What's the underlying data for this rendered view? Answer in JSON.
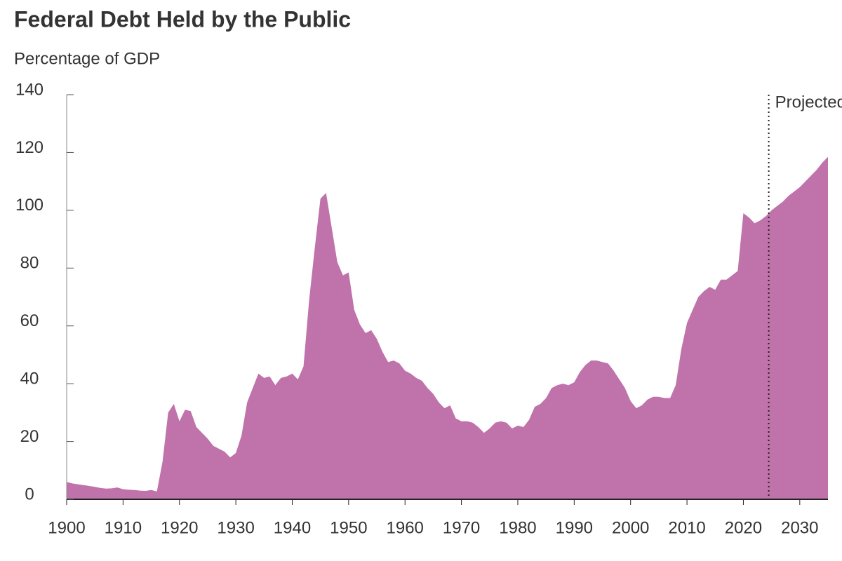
{
  "chart_data": {
    "type": "area",
    "title": "Federal Debt Held by the Public",
    "subtitle": "Percentage of GDP",
    "annotation": {
      "label": "Projected",
      "x": 2024.5
    },
    "color": "#c072aa",
    "x": [
      1900,
      1901,
      1902,
      1903,
      1904,
      1905,
      1906,
      1907,
      1908,
      1909,
      1910,
      1911,
      1912,
      1913,
      1914,
      1915,
      1916,
      1917,
      1918,
      1919,
      1920,
      1921,
      1922,
      1923,
      1924,
      1925,
      1926,
      1927,
      1928,
      1929,
      1930,
      1931,
      1932,
      1933,
      1934,
      1935,
      1936,
      1937,
      1938,
      1939,
      1940,
      1941,
      1942,
      1943,
      1944,
      1945,
      1946,
      1947,
      1948,
      1949,
      1950,
      1951,
      1952,
      1953,
      1954,
      1955,
      1956,
      1957,
      1958,
      1959,
      1960,
      1961,
      1962,
      1963,
      1964,
      1965,
      1966,
      1967,
      1968,
      1969,
      1970,
      1971,
      1972,
      1973,
      1974,
      1975,
      1976,
      1977,
      1978,
      1979,
      1980,
      1981,
      1982,
      1983,
      1984,
      1985,
      1986,
      1987,
      1988,
      1989,
      1990,
      1991,
      1992,
      1993,
      1994,
      1995,
      1996,
      1997,
      1998,
      1999,
      2000,
      2001,
      2002,
      2003,
      2004,
      2005,
      2006,
      2007,
      2008,
      2009,
      2010,
      2011,
      2012,
      2013,
      2014,
      2015,
      2016,
      2017,
      2018,
      2019,
      2020,
      2021,
      2022,
      2023,
      2024,
      2025,
      2026,
      2027,
      2028,
      2029,
      2030,
      2031,
      2032,
      2033,
      2034,
      2035
    ],
    "values": [
      6,
      5.5,
      5.2,
      4.9,
      4.6,
      4.3,
      3.9,
      3.7,
      3.8,
      4.1,
      3.5,
      3.3,
      3.2,
      3,
      2.9,
      3.2,
      2.7,
      13,
      30,
      33,
      27,
      31,
      30.5,
      25,
      23,
      21,
      18.5,
      17.5,
      16.5,
      14.5,
      16,
      22,
      33.5,
      38.5,
      43.5,
      42,
      42.5,
      39.5,
      42,
      42.5,
      43.5,
      41.5,
      46,
      69,
      87,
      104,
      106,
      94,
      82,
      77.5,
      78.5,
      65.5,
      60.5,
      57.5,
      58.5,
      55.5,
      51,
      47.5,
      48,
      47,
      44.5,
      43.5,
      42,
      41,
      38.5,
      36.5,
      33.5,
      31.5,
      32.5,
      28,
      27,
      27,
      26.5,
      25,
      23,
      24.5,
      26.5,
      27,
      26.5,
      24.5,
      25.5,
      25,
      27.5,
      32,
      33,
      35,
      38.5,
      39.5,
      40,
      39.5,
      40.5,
      44,
      46.5,
      48,
      48,
      47.5,
      47,
      44.5,
      41.5,
      38.5,
      34,
      31.5,
      32.5,
      34.5,
      35.5,
      35.5,
      35,
      35,
      39.5,
      52,
      61,
      65.5,
      70,
      72,
      73.5,
      72.5,
      76,
      76,
      77.5,
      79,
      99,
      97.5,
      95.5,
      96.5,
      98,
      100,
      101.5,
      103,
      105,
      106.5,
      108,
      110,
      112,
      114,
      116.5,
      118.5
    ],
    "xlim": [
      1900,
      2035
    ],
    "xticks": [
      1900,
      1910,
      1920,
      1930,
      1940,
      1950,
      1960,
      1970,
      1980,
      1990,
      2000,
      2010,
      2020,
      2030
    ],
    "ylim": [
      0,
      140
    ],
    "yticks": [
      0,
      20,
      40,
      60,
      80,
      100,
      120,
      140
    ]
  }
}
